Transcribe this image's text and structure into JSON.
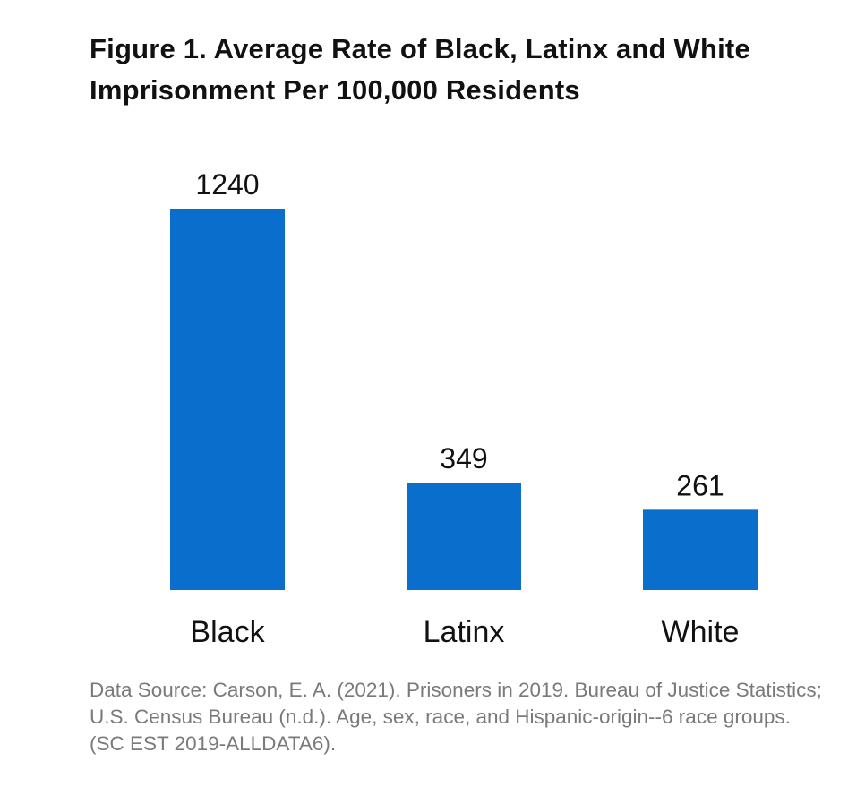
{
  "chart_data": {
    "type": "bar",
    "title": "Figure 1. Average Rate of Black, Latinx and White Imprisonment Per 100,000 Residents",
    "xlabel": "",
    "ylabel": "",
    "categories": [
      "Black",
      "Latinx",
      "White"
    ],
    "values": [
      1240,
      349,
      261
    ],
    "data_labels": [
      "1240",
      "349",
      "261"
    ],
    "ylim": [
      0,
      1240
    ],
    "bar_color": "#0A6FCC",
    "grid": false,
    "legend": "none"
  },
  "source_note": "Data Source: Carson, E. A. (2021). Prisoners in 2019. Bureau of Justice Statistics; U.S. Census Bureau (n.d.). Age, sex, race, and Hispanic-origin--6 race groups. (SC EST 2019-ALLDATA6)."
}
